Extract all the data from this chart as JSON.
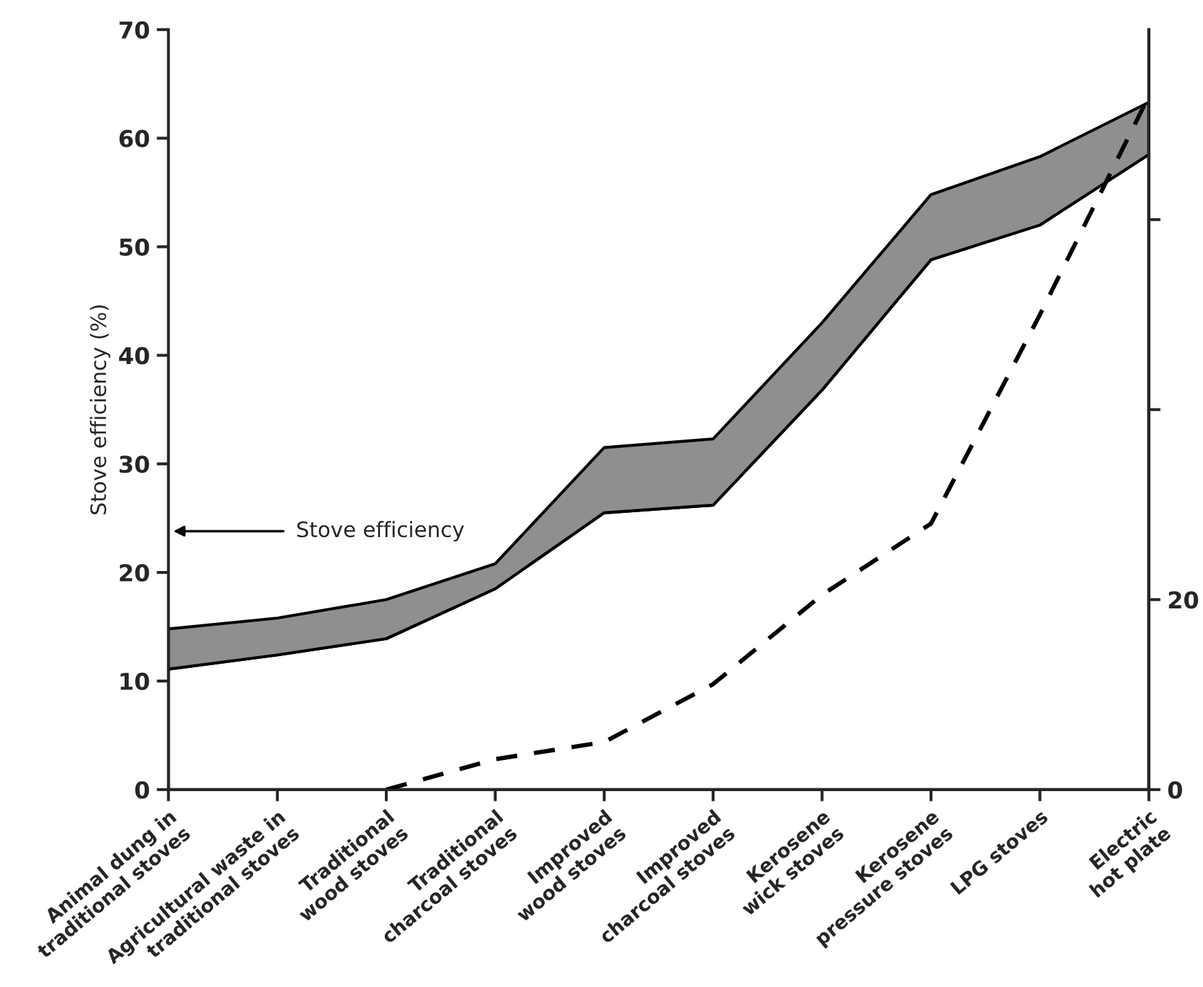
{
  "chart_data": {
    "type": "area",
    "ylabel": "Stove efficiency (%)",
    "categories": [
      "Animal dung in\ntraditional stoves",
      "Agricultural waste in\ntraditional stoves",
      "Traditional\nwood stoves",
      "Traditional\ncharcoal stoves",
      "Improved\nwood stoves",
      "Improved\ncharcoal stoves",
      "Kerosene\nwick stoves",
      "Kerosene\npressure stoves",
      "LPG stoves",
      "Electric\nhot plate"
    ],
    "series": [
      {
        "color": "#ffffff",
        "values": [
          11.1,
          12.4,
          13.9,
          18.5,
          25.5,
          26.2,
          36.8,
          48.8,
          52,
          58.5
        ]
      },
      {
        "color": "#8f8f8f",
        "values": [
          3.7,
          3.4,
          3.6,
          2.3,
          6,
          6.1,
          6.2,
          6,
          6.3,
          4.8
        ]
      },
      {
        "type": "line",
        "axis": "y2",
        "color": "#000000",
        "line_style": "dashed",
        "values": [
          null,
          null,
          0,
          3.2,
          5,
          11.1,
          20.5,
          28,
          50,
          73
        ]
      }
    ],
    "ylim": [
      0,
      70
    ],
    "yticks": [
      0,
      10,
      20,
      30,
      40,
      50,
      60,
      70
    ],
    "y2lim": [
      0,
      80
    ],
    "y2ticks": [
      0,
      20,
      {
        "value": 40,
        "label": null
      },
      {
        "value": 60,
        "label": null
      }
    ],
    "annotations": [
      "Stove efficiency"
    ],
    "stacked": true,
    "grid": false,
    "legend": false
  }
}
